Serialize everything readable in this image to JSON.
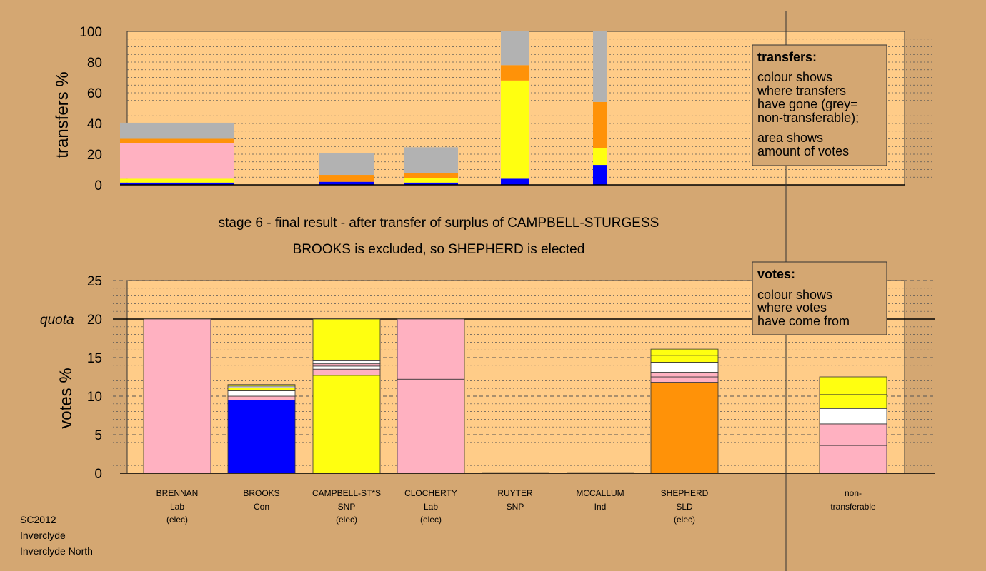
{
  "colors": {
    "background": "#d4a772",
    "plot_area": "#ffcc88",
    "grey": "#b2b2b2",
    "orange": "#ff9208",
    "pink": "#ffb1c1",
    "yellow": "#ffff10",
    "blue": "#0000ff",
    "white": "#ffffff"
  },
  "footer": [
    "SC2012",
    "Inverclyde",
    "Inverclyde North"
  ],
  "chart_data": [
    {
      "type": "bar",
      "id": "transfers",
      "ylabel": "transfers %",
      "ylim": [
        0,
        100
      ],
      "yticks": [
        0,
        20,
        40,
        60,
        80,
        100
      ],
      "grid": true,
      "legend": {
        "title": "transfers:",
        "lines": [
          "colour shows",
          "where transfers",
          "have gone (grey=",
          "non-transferable);",
          "area shows",
          "amount of votes"
        ]
      },
      "bars": [
        {
          "candidate": "BRENNAN",
          "segments": [
            [
              "blue",
              1.5
            ],
            [
              "yellow",
              2.5
            ],
            [
              "pink",
              23
            ],
            [
              "orange",
              3
            ],
            [
              "grey",
              10.5
            ]
          ]
        },
        {
          "candidate": "BROOKS",
          "segments": []
        },
        {
          "candidate": "CAMPBELL-ST*S",
          "segments": [
            [
              "blue",
              2
            ],
            [
              "orange",
              4.5
            ],
            [
              "grey",
              14
            ]
          ]
        },
        {
          "candidate": "CLOCHERTY",
          "segments": [
            [
              "blue",
              1.5
            ],
            [
              "yellow",
              3
            ],
            [
              "orange",
              3
            ],
            [
              "grey",
              17
            ]
          ]
        },
        {
          "candidate": "RUYTER",
          "segments": [
            [
              "blue",
              4
            ],
            [
              "yellow",
              64
            ],
            [
              "orange",
              10
            ],
            [
              "grey",
              22
            ]
          ]
        },
        {
          "candidate": "MCCALLUM",
          "segments": [
            [
              "blue",
              13
            ],
            [
              "yellow",
              11
            ],
            [
              "orange",
              30
            ],
            [
              "grey",
              46
            ]
          ]
        }
      ]
    },
    {
      "type": "bar",
      "id": "votes",
      "title": "stage 6 - final result - after transfer of surplus of CAMPBELL-STURGESS",
      "subtitle": "BROOKS is excluded, so SHEPHERD is elected",
      "ylabel": "votes %",
      "ylim": [
        0,
        25
      ],
      "yticks": [
        0,
        5,
        10,
        15,
        20,
        25
      ],
      "quota": 20,
      "quota_label": "quota",
      "grid": true,
      "legend": {
        "title": "votes:",
        "lines": [
          "colour shows",
          "where votes",
          "have come from"
        ]
      },
      "categories": [
        {
          "name": "BRENNAN",
          "party": "Lab",
          "status": "(elec)"
        },
        {
          "name": "BROOKS",
          "party": "Con",
          "status": ""
        },
        {
          "name": "CAMPBELL-ST*S",
          "party": "SNP",
          "status": "(elec)"
        },
        {
          "name": "CLOCHERTY",
          "party": "Lab",
          "status": "(elec)"
        },
        {
          "name": "RUYTER",
          "party": "SNP",
          "status": ""
        },
        {
          "name": "MCCALLUM",
          "party": "Ind",
          "status": ""
        },
        {
          "name": "SHEPHERD",
          "party": "SLD",
          "status": "(elec)"
        },
        {
          "name": "non-",
          "party": "transferable",
          "status": ""
        }
      ],
      "bars": [
        [
          [
            "pink",
            20
          ]
        ],
        [
          [
            "blue",
            9.5
          ],
          [
            "pink",
            0.5
          ],
          [
            "white",
            0.7
          ],
          [
            "yellow",
            0.4
          ],
          [
            "white",
            0.2
          ],
          [
            "yellow",
            0.2
          ]
        ],
        [
          [
            "yellow",
            12.7
          ],
          [
            "pink",
            0.8
          ],
          [
            "white",
            0.4
          ],
          [
            "pink",
            0.3
          ],
          [
            "white",
            0.4
          ],
          [
            "yellow",
            5.4
          ]
        ],
        [
          [
            "pink",
            12.2
          ],
          [
            "pink",
            7.8
          ]
        ],
        [],
        [],
        [
          [
            "orange",
            11.8
          ],
          [
            "pink",
            0.7
          ],
          [
            "pink",
            0.6
          ],
          [
            "white",
            1.3
          ],
          [
            "yellow",
            0.9
          ],
          [
            "yellow",
            0.8
          ]
        ],
        [
          [
            "pink",
            3.6
          ],
          [
            "pink",
            2.8
          ],
          [
            "white",
            2.0
          ],
          [
            "yellow",
            1.8
          ],
          [
            "yellow",
            2.3
          ]
        ]
      ]
    }
  ]
}
